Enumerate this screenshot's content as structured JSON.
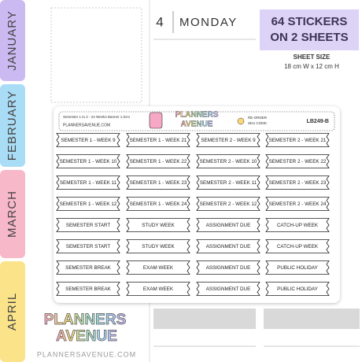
{
  "tabs": [
    "JANUARY",
    "FEBRUARY",
    "MARCH",
    "APRIL"
  ],
  "planner": {
    "day_number": "4",
    "day_name": "MONDAY"
  },
  "badge": {
    "lines": [
      "64 STICKERS",
      "ON 2 SHEETS"
    ]
  },
  "sheet_size": {
    "label": "SHEET SIZE",
    "value": "18 cm W x 12 cm H"
  },
  "sheet": {
    "description": "Semester 1 to 2 - 24 Weeks Banner 1.0cm",
    "website": "PLANNERSAVENUE.COM",
    "logo": [
      "PLANNERS",
      "AVENUE"
    ],
    "reorder": [
      "RE-ORDER",
      "SKU CODE:"
    ],
    "sku": "LB249-B",
    "rows": [
      [
        "SEMESTER 1 - WEEK 9",
        "SEMESTER 1 - WEEK 21",
        "SEMESTER 2 - WEEK 9",
        "SEMESTER 2 - WEEK 21"
      ],
      [
        "SEMESTER 1 - WEEK 10",
        "SEMESTER 1 - WEEK 22",
        "SEMESTER 2 - WEEK 10",
        "SEMESTER 2 - WEEK 22"
      ],
      [
        "SEMESTER 1 - WEEK 11",
        "SEMESTER 1 - WEEK 23",
        "SEMESTER 2 - WEEK 11",
        "SEMESTER 2 - WEEK 23"
      ],
      [
        "SEMESTER 1 - WEEK 12",
        "SEMESTER 1 - WEEK 24",
        "SEMESTER 2 - WEEK 12",
        "SEMESTER 2 - WEEK 24"
      ],
      [
        "SEMESTER START",
        "STUDY WEEK",
        "ASSIGNMENT DUE",
        "CATCH-UP WEEK"
      ],
      [
        "SEMESTER START",
        "STUDY WEEK",
        "ASSIGNMENT DUE",
        "CATCH-UP WEEK"
      ],
      [
        "SEMESTER BREAK",
        "EXAM WEEK",
        "ASSIGNMENT DUE",
        "PUBLIC HOLIDAY"
      ],
      [
        "SEMESTER BREAK",
        "EXAM WEEK",
        "ASSIGNMENT DUE",
        "PUBLIC HOLIDAY"
      ]
    ]
  },
  "footer": {
    "logo": [
      "PLANNERS",
      "AVENUE"
    ],
    "website": "PLANNERSAVENUE.COM"
  }
}
